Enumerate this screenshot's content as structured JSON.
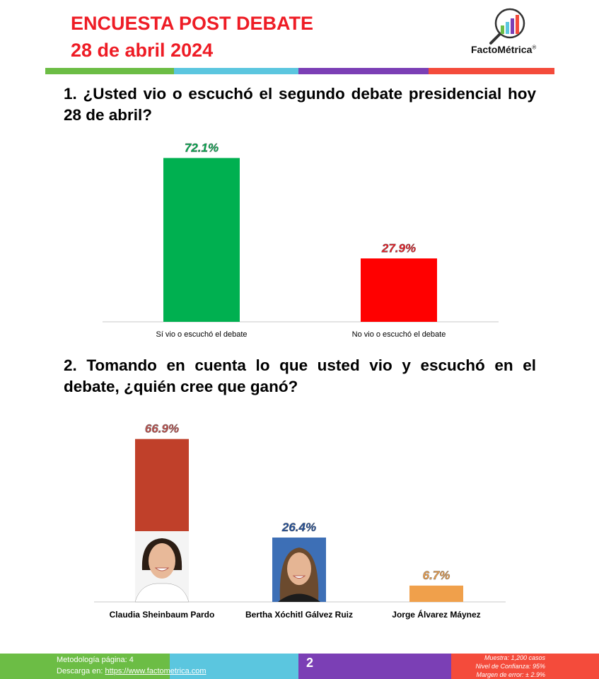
{
  "header": {
    "title_line1": "ENCUESTA POST DEBATE",
    "title_line2": "28 de abril 2024",
    "brand": "FactoMétrica",
    "brand_mark": "®"
  },
  "colors": {
    "title": "#ee1c25",
    "stripe": [
      "#6cbd45",
      "#5bc6df",
      "#7b3fb5",
      "#f44b3b"
    ],
    "footer": [
      "#6cbd45",
      "#5bc6df",
      "#7b3fb5",
      "#f44b3b"
    ]
  },
  "question1": "1. ¿Usted vio o escuchó el segundo debate presidencial hoy 28 de abril?",
  "question2": "2. Tomando en cuenta lo que usted vio y escuchó en el debate, ¿quién cree que ganó?",
  "chart_data": [
    {
      "type": "bar",
      "categories": [
        "Sí vio o escuchó el debate",
        "No vio o escuchó el debate"
      ],
      "values": [
        72.1,
        27.9
      ],
      "value_labels": [
        "72.1%",
        "27.9%"
      ],
      "colors": [
        "#00b050",
        "#ff0000"
      ],
      "label_colors": [
        "#00b050",
        "#ee1c25"
      ],
      "ylim": [
        0,
        80
      ],
      "grid": false,
      "legend": "none"
    },
    {
      "type": "bar",
      "categories": [
        "Claudia Sheinbaum Pardo",
        "Bertha Xóchitl Gálvez Ruiz",
        "Jorge Álvarez Máynez"
      ],
      "values": [
        66.9,
        26.4,
        6.7
      ],
      "value_labels": [
        "66.9%",
        "26.4%",
        "6.7%"
      ],
      "colors": [
        "#c0402a",
        "#1f4e9c",
        "#f0a04b"
      ],
      "label_colors": [
        "#c0504d",
        "#1f4e9c",
        "#f0a04b"
      ],
      "ylim": [
        0,
        70
      ],
      "grid": false,
      "legend": "none"
    }
  ],
  "footer": {
    "methodology": "Metodología página: 4",
    "download_prefix": "Descarga en: ",
    "download_link": "https://www.factometrica.com",
    "page_number": "2",
    "sample": "Muestra: 1,200 casos",
    "confidence": "Nivel de Confianza: 95%",
    "margin": "Margen de error: ± 2.9%"
  }
}
